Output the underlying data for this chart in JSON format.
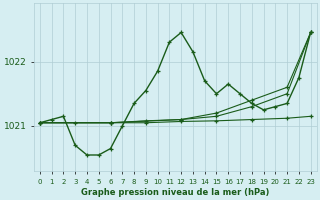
{
  "xlabel": "Graphe pression niveau de la mer (hPa)",
  "background_color": "#d6eef2",
  "grid_color": "#b0cdd4",
  "line_color": "#1a5c1a",
  "xlim": [
    -0.5,
    23.5
  ],
  "ylim": [
    1020.3,
    1022.9
  ],
  "yticks": [
    1021,
    1022
  ],
  "xticks": [
    0,
    1,
    2,
    3,
    4,
    5,
    6,
    7,
    8,
    9,
    10,
    11,
    12,
    13,
    14,
    15,
    16,
    17,
    18,
    19,
    20,
    21,
    22,
    23
  ],
  "series": [
    {
      "x": [
        0,
        1,
        2,
        3,
        4,
        5,
        6,
        7,
        8,
        9,
        10,
        11,
        12,
        13,
        14,
        15,
        16,
        17,
        18,
        19,
        20,
        21,
        22,
        23
      ],
      "y": [
        1021.05,
        1021.1,
        1021.15,
        1020.7,
        1020.55,
        1020.55,
        1020.65,
        1021.0,
        1021.35,
        1021.55,
        1021.85,
        1022.3,
        1022.45,
        1022.15,
        1021.7,
        1021.5,
        1021.65,
        1021.5,
        1021.35,
        1021.25,
        1021.3,
        1021.35,
        1021.75,
        1022.45
      ],
      "has_markers": true,
      "linewidth": 1.0
    },
    {
      "x": [
        0,
        3,
        6,
        9,
        12,
        15,
        18,
        21,
        23
      ],
      "y": [
        1021.05,
        1021.05,
        1021.05,
        1021.05,
        1021.07,
        1021.08,
        1021.1,
        1021.12,
        1021.15
      ],
      "has_markers": true,
      "linewidth": 0.8
    },
    {
      "x": [
        0,
        6,
        12,
        15,
        18,
        21,
        23
      ],
      "y": [
        1021.05,
        1021.05,
        1021.1,
        1021.15,
        1021.3,
        1021.5,
        1022.45
      ],
      "has_markers": true,
      "linewidth": 0.8
    },
    {
      "x": [
        0,
        6,
        9,
        12,
        15,
        18,
        21,
        23
      ],
      "y": [
        1021.05,
        1021.05,
        1021.08,
        1021.1,
        1021.2,
        1021.4,
        1021.6,
        1022.45
      ],
      "has_markers": true,
      "linewidth": 0.8
    }
  ]
}
